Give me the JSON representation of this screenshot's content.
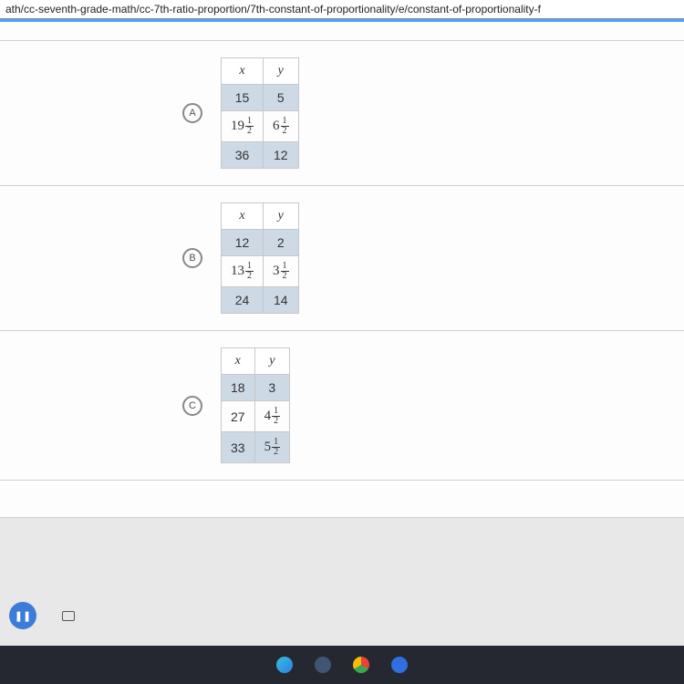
{
  "url": "ath/cc-seventh-grade-math/cc-7th-ratio-proportion/7th-constant-of-proportionality/e/constant-of-proportionality-f",
  "options": [
    {
      "label": "A",
      "headers": [
        "x",
        "y"
      ],
      "rows": [
        {
          "shade": true,
          "x": {
            "v": "15"
          },
          "y": {
            "v": "5"
          }
        },
        {
          "shade": false,
          "x": {
            "w": "19",
            "n": "1",
            "d": "2"
          },
          "y": {
            "w": "6",
            "n": "1",
            "d": "2"
          }
        },
        {
          "shade": true,
          "x": {
            "v": "36"
          },
          "y": {
            "v": "12"
          }
        }
      ]
    },
    {
      "label": "B",
      "headers": [
        "x",
        "y"
      ],
      "rows": [
        {
          "shade": true,
          "x": {
            "v": "12"
          },
          "y": {
            "v": "2"
          }
        },
        {
          "shade": false,
          "x": {
            "w": "13",
            "n": "1",
            "d": "2"
          },
          "y": {
            "w": "3",
            "n": "1",
            "d": "2"
          }
        },
        {
          "shade": true,
          "x": {
            "v": "24"
          },
          "y": {
            "v": "14"
          }
        }
      ]
    },
    {
      "label": "C",
      "headers": [
        "x",
        "y"
      ],
      "rows": [
        {
          "shade": true,
          "x": {
            "v": "18"
          },
          "y": {
            "v": "3"
          }
        },
        {
          "shade": false,
          "x": {
            "v": "27"
          },
          "y": {
            "w": "4",
            "n": "1",
            "d": "2"
          }
        },
        {
          "shade": true,
          "x": {
            "v": "33"
          },
          "y": {
            "w": "5",
            "n": "1",
            "d": "2"
          }
        }
      ]
    }
  ],
  "taskbar_icons": [
    {
      "name": "edge-icon",
      "color": "linear-gradient(135deg,#33c1d4,#2e7eed)"
    },
    {
      "name": "calc-icon",
      "color": "#3f5573"
    },
    {
      "name": "chrome-icon",
      "color": "conic-gradient(#ea4335 0 120deg,#34a853 120deg 240deg,#fbbc05 240deg 360deg)"
    },
    {
      "name": "camera-icon",
      "color": "#2f6fe0"
    }
  ],
  "pause_glyph": "❚❚"
}
